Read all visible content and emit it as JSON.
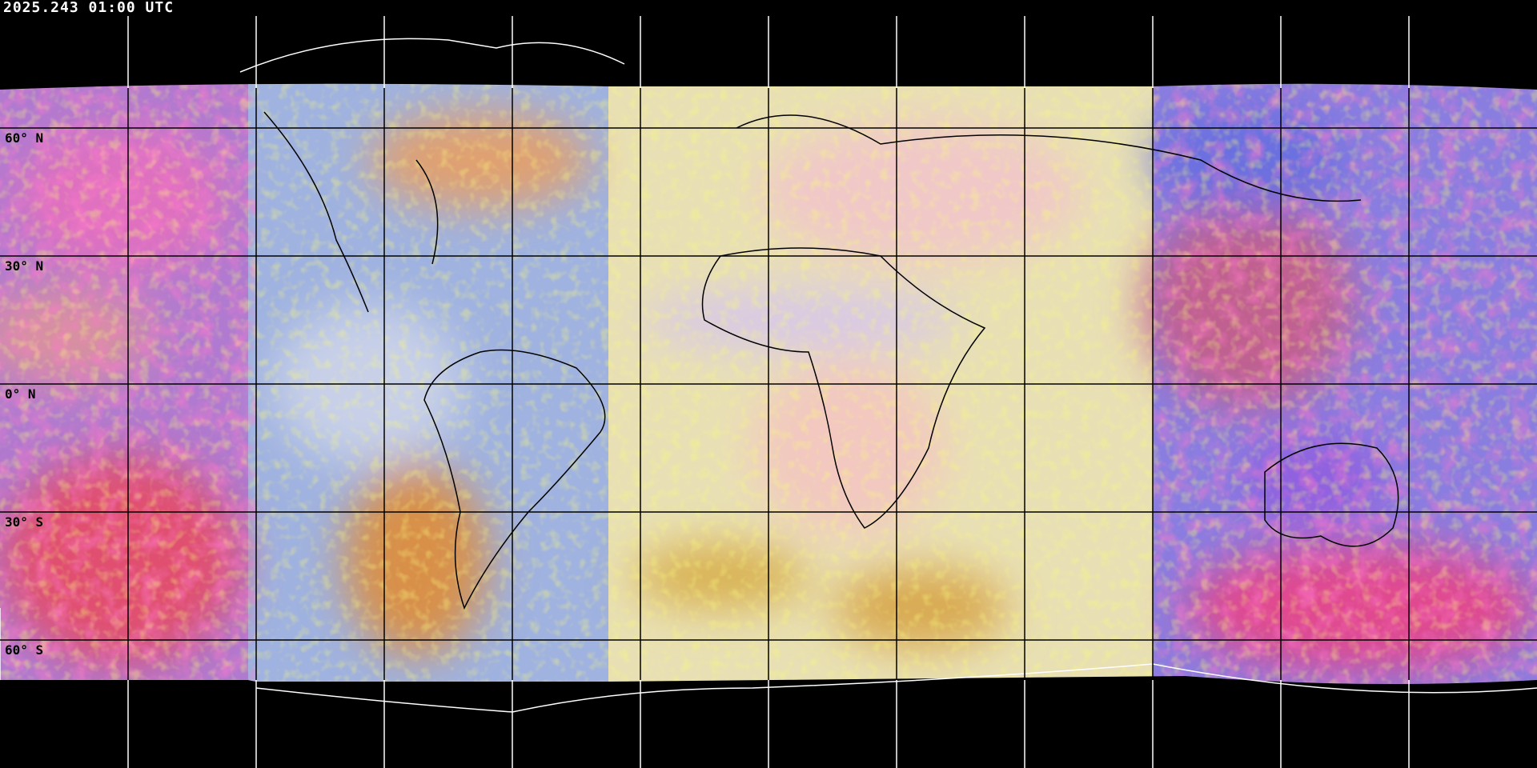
{
  "title": "2025.243 01:00 UTC",
  "projection": "equirectangular",
  "graticule": {
    "lon_step_deg": 30,
    "lat_step_deg": 30,
    "lat_labels": [
      {
        "lat": 60,
        "text": "60° N"
      },
      {
        "lat": 30,
        "text": "30° N"
      },
      {
        "lat": 0,
        "text": "0° N"
      },
      {
        "lat": -30,
        "text": "30° S"
      },
      {
        "lat": -60,
        "text": "60° S"
      }
    ]
  },
  "colors": {
    "background": "#000000",
    "coastline_outside": "#ffffff",
    "coastline_inside": "#000000",
    "grid_outside": "#ffffff",
    "grid_inside": "#000000"
  }
}
